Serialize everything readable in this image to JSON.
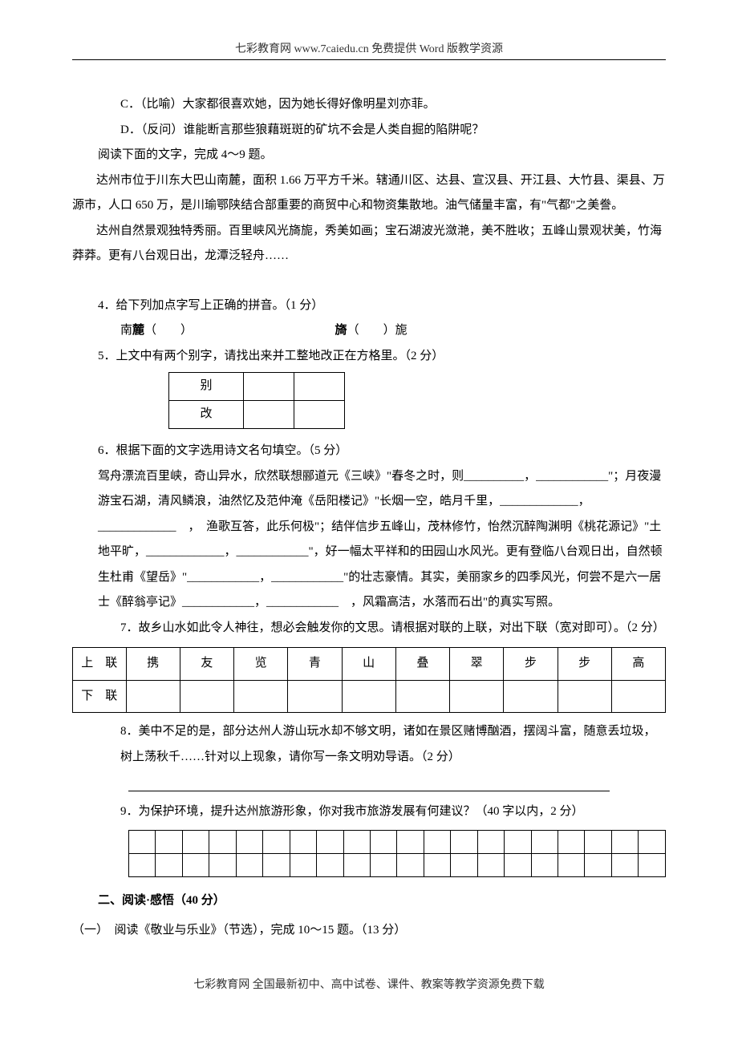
{
  "header": {
    "text": "七彩教育网  www.7caiedu.cn  免费提供 Word 版教学资源"
  },
  "choices": {
    "c": "C．（比喻）大家都很喜欢她，因为她长得好像明星刘亦菲。",
    "d": "D．（反问）谁能断言那些狼藉斑斑的矿坑不会是人类自掘的陷阱呢？"
  },
  "reading_intro": "阅读下面的文字，完成 4～9 题。",
  "passage": {
    "p1": "达州市位于川东大巴山南麓，面积 1.66 万平方千米。辖通川区、达县、宣汉县、开江县、大竹县、渠县、万源市，人口 650 万，是川瑜鄂陕结合部重要的商贸中心和物资集散地。油气储量丰富，有\"气都\"之美誊。",
    "p2": "达州自然景观独特秀丽。百里峡风光旖旎，秀美如画；宝石湖波光潋滟，美不胜收；五峰山景观状美，竹海莽莽。更有八台观日出，龙潭泛轻舟……"
  },
  "q4": {
    "text": "4．给下列加点字写上正确的拼音。（1 分）",
    "item1_pre": "南",
    "item1_char": "麓",
    "item1_paren": "（　　）",
    "item2_char": "旖",
    "item2_paren": "（　　）",
    "item2_suf": "旎"
  },
  "q5": {
    "text": "5．上文中有两个别字，请找出来并工整地改正在方格里。（2 分）",
    "row1_label": "别",
    "row2_label": "改"
  },
  "q6": {
    "text": "6．根据下面的文字选用诗文名句填空。（5 分）",
    "body": "驾舟漂流百里峡，奇山异水，欣然联想郦道元《三峡》\"春冬之时，则__________，____________\"；月夜漫游宝石湖，清风鳞浪，油然忆及范仲淹《岳阳楼记》\"长烟一空，皓月千里，_____________，_____________　，　渔歌互答，此乐何极\"；结伴信步五峰山，茂林修竹，怡然沉醉陶渊明《桃花源记》\"土地平旷，_____________，____________\"，好一幅太平祥和的田园山水风光。更有登临八台观日出，自然顿生杜甫《望岳》\"____________，____________\"的壮志豪情。其实，美丽家乡的四季风光，何尝不是六一居士《醉翁亭记》____________，____________　，风霜高洁，水落而石出\"的真实写照。"
  },
  "q7": {
    "text": "7．故乡山水如此令人神往，想必会触发你的文思。请根据对联的上联，对出下联（宽对即可）。（2 分）",
    "row1_label": "上　联",
    "row2_label": "下　联",
    "up": [
      "携",
      "友",
      "览",
      "青",
      "山",
      "叠",
      "翠",
      "步",
      "步",
      "高"
    ]
  },
  "q8": {
    "text": "8．美中不足的是，部分达州人游山玩水却不够文明，诸如在景区赌博酗酒，摆阔斗富，随意丢垃圾，树上荡秋千……针对以上现象，请你写一条文明劝导语。（2 分）"
  },
  "q9": {
    "text": "9．为保护环境，提升达州旅游形象，你对我市旅游发展有何建议？（40 字以内，2 分）",
    "grid_cols": 20,
    "grid_rows": 2
  },
  "section2": {
    "heading": "二、阅读·感悟（40 分）",
    "sub": "（一）　阅读《敬业与乐业》（节选），完成 10～15 题。（13 分）"
  },
  "footer": {
    "text": "七彩教育网 全国最新初中、高中试卷、课件、教案等教学资源免费下载"
  }
}
